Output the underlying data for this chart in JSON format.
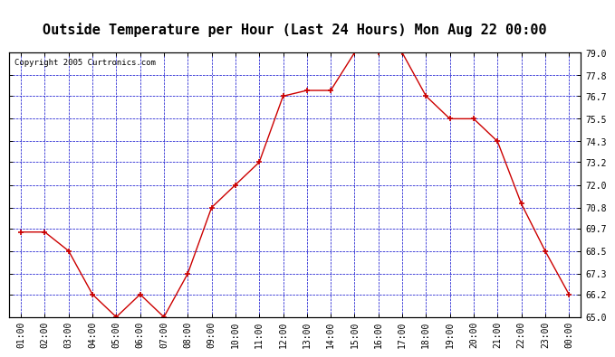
{
  "title": "Outside Temperature per Hour (Last 24 Hours) Mon Aug 22 00:00",
  "copyright": "Copyright 2005 Curtronics.com",
  "hours": [
    "01:00",
    "02:00",
    "03:00",
    "04:00",
    "05:00",
    "06:00",
    "07:00",
    "08:00",
    "09:00",
    "10:00",
    "11:00",
    "12:00",
    "13:00",
    "14:00",
    "15:00",
    "16:00",
    "17:00",
    "18:00",
    "19:00",
    "20:00",
    "21:00",
    "22:00",
    "23:00",
    "00:00"
  ],
  "temps": [
    69.5,
    69.5,
    68.5,
    66.2,
    65.0,
    66.2,
    65.0,
    67.3,
    70.8,
    72.0,
    73.2,
    76.7,
    77.0,
    77.0,
    79.0,
    79.0,
    79.0,
    76.7,
    75.5,
    75.5,
    74.3,
    71.0,
    68.5,
    66.2
  ],
  "yticks": [
    65.0,
    66.2,
    67.3,
    68.5,
    69.7,
    70.8,
    72.0,
    73.2,
    74.3,
    75.5,
    76.7,
    77.8,
    79.0
  ],
  "ylim": [
    65.0,
    79.0
  ],
  "line_color": "#cc0000",
  "marker_color": "#cc0000",
  "grid_color": "#0000cc",
  "bg_color": "#ffffff",
  "title_fontsize": 11,
  "copyright_fontsize": 6.5,
  "tick_fontsize": 7,
  "ytick_fontsize": 7
}
